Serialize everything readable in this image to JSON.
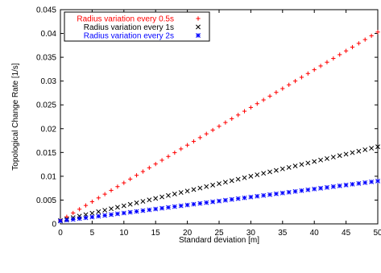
{
  "chart_data": {
    "type": "scatter",
    "xlabel": "Standard deviation [m]",
    "ylabel": "Topological Change Rate [1/s]",
    "xlim": [
      0,
      50
    ],
    "ylim": [
      0,
      0.045
    ],
    "x_ticks": [
      "0",
      "5",
      "10",
      "15",
      "20",
      "25",
      "30",
      "35",
      "40",
      "45",
      "50"
    ],
    "y_ticks": [
      "0",
      "0.005",
      "0.01",
      "0.015",
      "0.02",
      "0.025",
      "0.03",
      "0.035",
      "0.04",
      "0.045"
    ],
    "grid": false,
    "legend_position": "top-left",
    "series": [
      {
        "name": "Radius variation every 0.5s",
        "marker": "plus",
        "color": "#ff0000",
        "x_start": 0,
        "x_end": 50,
        "y_start": 0.0007,
        "y_end": 0.0403,
        "points": 51
      },
      {
        "name": "Radius variation every 1s",
        "marker": "cross",
        "color": "#000000",
        "x_start": 0,
        "x_end": 50,
        "y_start": 0.0007,
        "y_end": 0.0162,
        "points": 51
      },
      {
        "name": "Radius variation every 2s",
        "marker": "star",
        "color": "#0000ff",
        "x_start": 0,
        "x_end": 50,
        "y_start": 0.0006,
        "y_end": 0.009,
        "points": 51
      }
    ]
  }
}
